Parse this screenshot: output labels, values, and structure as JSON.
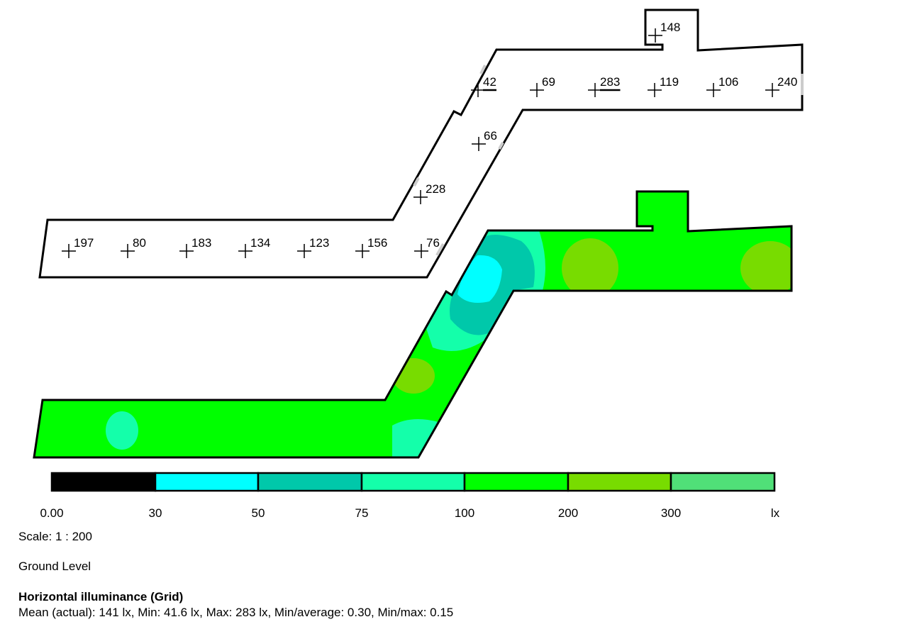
{
  "plan": {
    "points": [
      {
        "label": "148",
        "underline": false
      },
      {
        "label": "42",
        "underline": true
      },
      {
        "label": "69",
        "underline": false
      },
      {
        "label": "283",
        "underline": true
      },
      {
        "label": "119",
        "underline": false
      },
      {
        "label": "106",
        "underline": false
      },
      {
        "label": "240",
        "underline": false
      },
      {
        "label": "66",
        "underline": false
      },
      {
        "label": "228",
        "underline": false
      },
      {
        "label": "197",
        "underline": false
      },
      {
        "label": "80",
        "underline": false
      },
      {
        "label": "183",
        "underline": false
      },
      {
        "label": "134",
        "underline": false
      },
      {
        "label": "123",
        "underline": false
      },
      {
        "label": "156",
        "underline": false
      },
      {
        "label": "76",
        "underline": false
      }
    ]
  },
  "legend": {
    "ticks": [
      "0.00",
      "30",
      "50",
      "75",
      "100",
      "200",
      "300",
      "lx"
    ],
    "colors": [
      "#000000",
      "#00ffff",
      "#00c8aa",
      "#14ffaa",
      "#00ff00",
      "#78dc00",
      "#50e078"
    ]
  },
  "info": {
    "scale": "Scale: 1 : 200",
    "level": "Ground Level",
    "title": "Horizontal illuminance (Grid)",
    "stats": "Mean (actual): 141 lx, Min: 41.6 lx, Max: 283 lx, Min/average: 0.30, Min/max: 0.15"
  }
}
